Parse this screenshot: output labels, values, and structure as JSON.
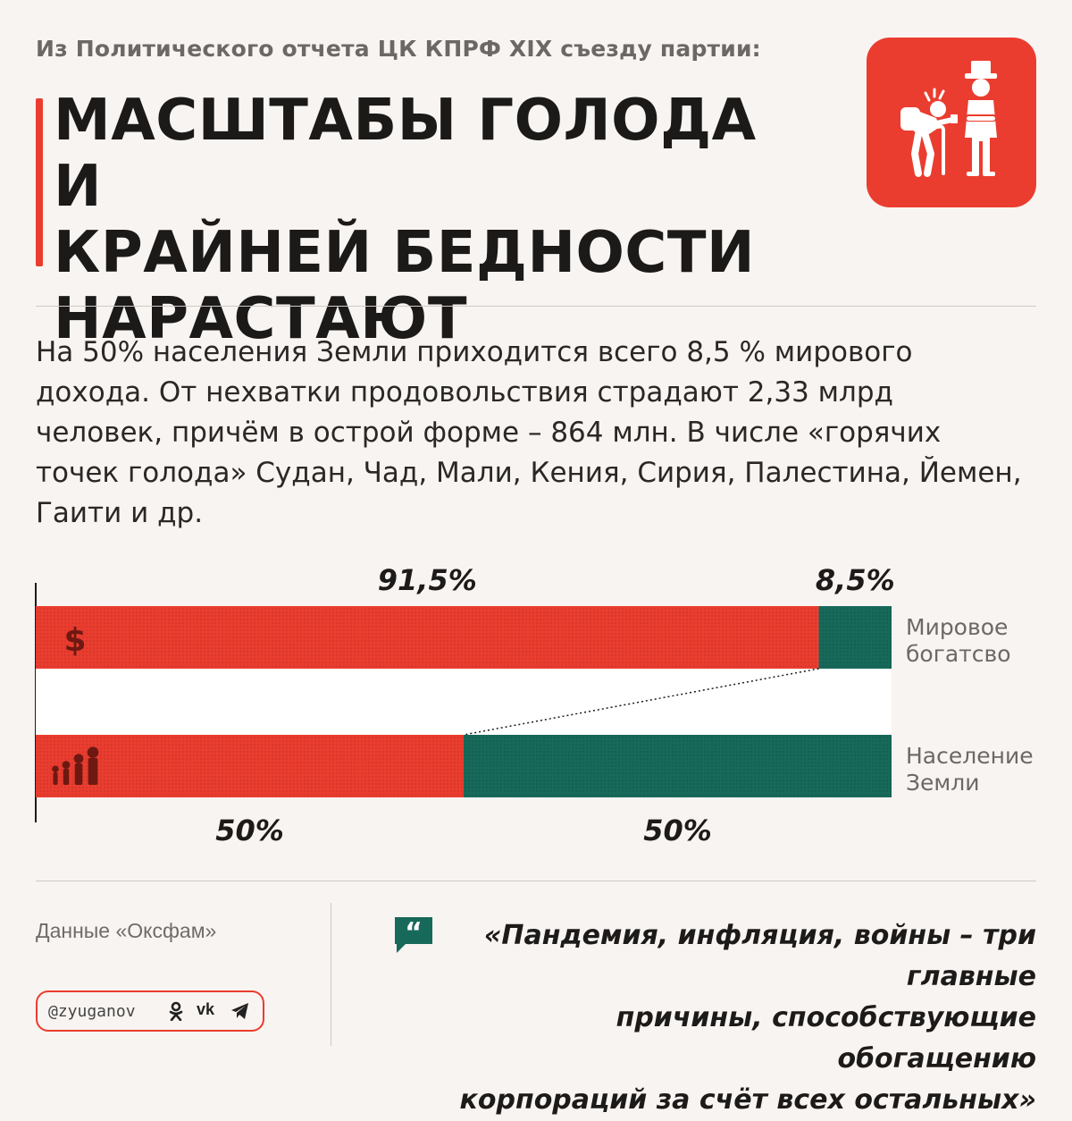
{
  "header": {
    "subtitle": "Из Политического отчета ЦК КПРФ XIX съезду партии:",
    "title_lines": [
      "МАСШТАБЫ ГОЛОДА И",
      "КРАЙНЕЙ БЕДНОСТИ",
      "НАРАСТАЮТ"
    ],
    "badge_icon": "beggar-and-rich-man-icon"
  },
  "body_text": "На 50% населения Земли приходится всего 8,5 % мирового дохода. От нехватки продовольствия страдают 2,33 млрд человек, причём в острой форме – 864 млн. В числе «горячих точек голода» Судан, Чад, Мали, Кения, Сирия, Палестина, Йемен, Гаити и др.",
  "chart_data": {
    "type": "bar",
    "orientation": "horizontal",
    "stacked": true,
    "unit": "%",
    "categories": [
      "Мировое богатсво",
      "Население Земли"
    ],
    "category_lines": [
      [
        "Мировое",
        "богатсво"
      ],
      [
        "Население",
        "Земли"
      ]
    ],
    "category_icons": [
      "dollar-icon",
      "people-icon"
    ],
    "series": [
      {
        "name": "top",
        "color": "#ea3d2f",
        "values": [
          91.5,
          50
        ],
        "labels": [
          "91,5%",
          "50%"
        ]
      },
      {
        "name": "bottom",
        "color": "#17695a",
        "values": [
          8.5,
          50
        ],
        "labels": [
          "8,5%",
          "50%"
        ]
      }
    ],
    "xlim": [
      0,
      100
    ]
  },
  "footer": {
    "source": "Данные «Оксфам»",
    "handle": "@zyuganov",
    "social_icons": [
      "odnoklassniki-icon",
      "vk-icon",
      "telegram-icon"
    ],
    "vk_text": "vk",
    "quote_lines": [
      "«Пандемия, инфляция, войны – три главные",
      "причины, способствующие обогащению",
      "корпораций за счёт всех остальных»"
    ]
  },
  "colors": {
    "accent_red": "#ea3d2f",
    "accent_green": "#17695a",
    "background": "#f8f4f1"
  }
}
